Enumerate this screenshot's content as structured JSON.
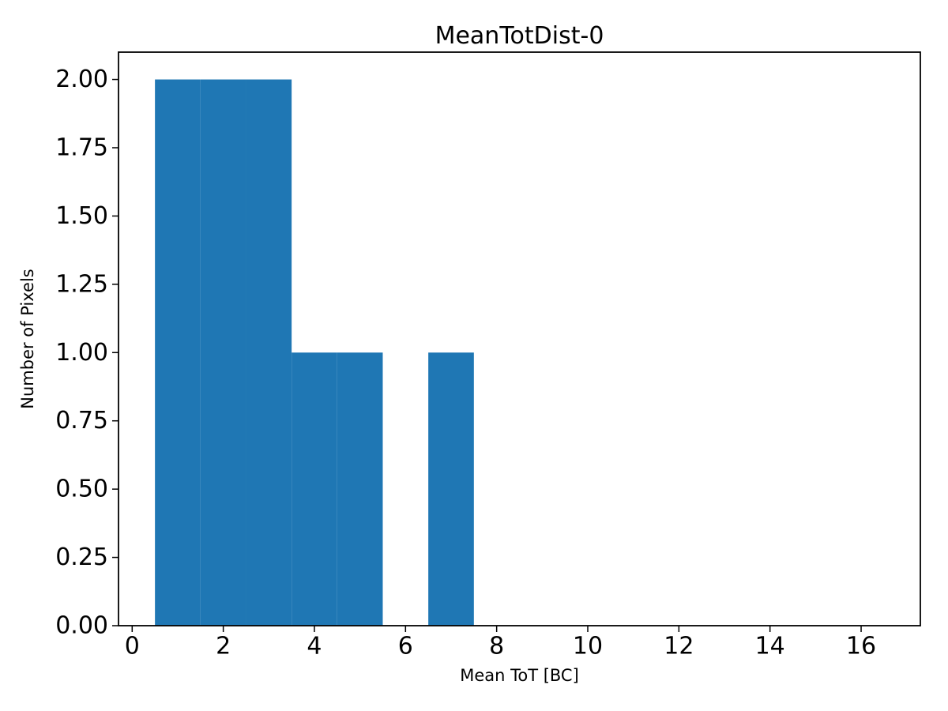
{
  "figure": {
    "background_color": "#ffffff",
    "text_color": "#000000",
    "spine_color": "#000000"
  },
  "chart_data": {
    "type": "bar",
    "title": "MeanTotDist-0",
    "xlabel": "Mean ToT [BC]",
    "ylabel": "Number of Pixels",
    "bin_edges": [
      0.5,
      1.5,
      2.5,
      3.5,
      4.5,
      5.5,
      6.5,
      7.5,
      8.5,
      9.5,
      10.5,
      11.5,
      12.5,
      13.5,
      14.5,
      15.5,
      16.5
    ],
    "counts": [
      2,
      2,
      2,
      1,
      1,
      0,
      1,
      0,
      0,
      0,
      0,
      0,
      0,
      0,
      0,
      0
    ],
    "xlim": [
      -0.3,
      17.3
    ],
    "ylim": [
      0,
      2.1
    ],
    "xticks": [
      0,
      2,
      4,
      6,
      8,
      10,
      12,
      14,
      16
    ],
    "xtick_labels": [
      "0",
      "2",
      "4",
      "6",
      "8",
      "10",
      "12",
      "14",
      "16"
    ],
    "yticks": [
      0,
      0.25,
      0.5,
      0.75,
      1,
      1.25,
      1.5,
      1.75,
      2
    ],
    "ytick_labels": [
      "0.00",
      "0.25",
      "0.50",
      "0.75",
      "1.00",
      "1.25",
      "1.50",
      "1.75",
      "2.00"
    ],
    "bar_color": "#1f77b4",
    "grid": false,
    "legend": null
  }
}
